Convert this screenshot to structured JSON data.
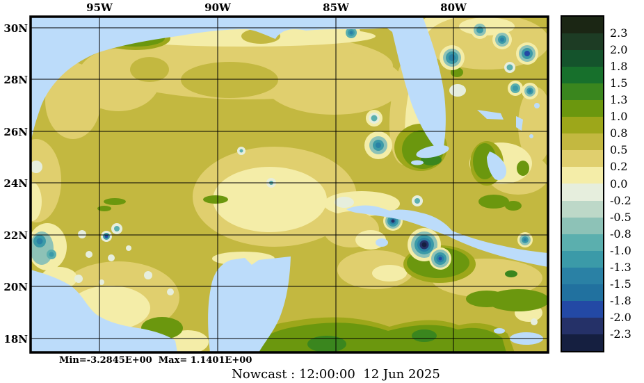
{
  "figure": {
    "title": "Nowcast : 12:00:00  12 Jun 2025",
    "stats_line": "Min=-3.2845E+00  Max= 1.1401E+00"
  },
  "axes": {
    "top": [
      "95W",
      "90W",
      "85W",
      "80W"
    ],
    "left": [
      "30N",
      "28N",
      "26N",
      "24N",
      "22N",
      "20N",
      "18N"
    ]
  },
  "colorbar": {
    "tick_labels": [
      "2.3",
      "2.0",
      "1.8",
      "1.5",
      "1.3",
      "1.0",
      "0.8",
      "0.5",
      "0.2",
      "0.0",
      "-0.2",
      "-0.5",
      "-0.8",
      "-1.0",
      "-1.3",
      "-1.5",
      "-1.8",
      "-2.0",
      "-2.3"
    ],
    "block_colors_top_to_bottom": [
      "#1b2614",
      "#1d3c24",
      "#14532c",
      "#17702c",
      "#3a861e",
      "#6b970e",
      "#9da71a",
      "#c3b840",
      "#e0cf6e",
      "#f4eda8",
      "#e6eedd",
      "#bdd8c8",
      "#8dc2b7",
      "#5bafae",
      "#3b9aa8",
      "#2a81a5",
      "#21719f",
      "#2349a5",
      "#253168",
      "#151f40"
    ]
  },
  "map": {
    "land_color": "#bcdcfa",
    "field_base_color": "#c3b840",
    "gridline_color": "#000000",
    "frame_color": "#000000"
  },
  "chart_data": {
    "type": "heatmap",
    "title": "Nowcast : 12:00:00  12 Jun 2025",
    "region": "Gulf of Mexico and northwest Caribbean (contoured ocean anomaly field, land masked light blue)",
    "field_min": -3.2845,
    "field_max": 1.1401,
    "stats_text": "Min=-3.2845E+00  Max= 1.1401E+00",
    "lon_tick_labels": [
      "95W",
      "90W",
      "85W",
      "80W"
    ],
    "lat_tick_labels": [
      "30N",
      "28N",
      "26N",
      "24N",
      "22N",
      "20N",
      "18N"
    ],
    "lon_range_deg_west": [
      98,
      76
    ],
    "lat_range_deg_north": [
      17.5,
      30.4
    ],
    "grid": true,
    "contour_levels": [
      -2.3,
      -2.0,
      -1.8,
      -1.5,
      -1.3,
      -1.0,
      -0.8,
      -0.5,
      -0.2,
      0.0,
      0.2,
      0.5,
      0.8,
      1.0,
      1.3,
      1.5,
      1.8,
      2.0,
      2.3
    ],
    "palette_top_to_bottom_high_to_low": [
      "#1b2614",
      "#1d3c24",
      "#14532c",
      "#17702c",
      "#3a861e",
      "#6b970e",
      "#9da71a",
      "#c3b840",
      "#e0cf6e",
      "#f4eda8",
      "#e6eedd",
      "#bdd8c8",
      "#8dc2b7",
      "#5bafae",
      "#3b9aa8",
      "#2a81a5",
      "#21719f",
      "#2349a5",
      "#253168",
      "#151f40"
    ],
    "legend_position": "right",
    "dominant_field_value_range": [
      0.5,
      0.8
    ],
    "notable_features": [
      {
        "desc": "strong negative eddy cluster south of western Cuba",
        "lon_w": 81.3,
        "lat_n": 21.6,
        "approx_value": -2.5
      },
      {
        "desc": "negative eddies along Atlantic / Bahamas side",
        "lon_w": 79.0,
        "lat_n": 29.3,
        "approx_value": -1.3
      },
      {
        "desc": "coastal negative patch near Tampico, Mexico",
        "lon_w": 97.5,
        "lat_n": 21.8,
        "approx_value": -1.5
      },
      {
        "desc": "isolated cold-core eddy in eastern Gulf",
        "lon_w": 83.2,
        "lat_n": 25.5,
        "approx_value": -1.3
      },
      {
        "desc": "broad positive (0.5-0.8) field across Gulf basin with 0.8-1.3 patches in Caribbean and off south Florida"
      }
    ]
  }
}
